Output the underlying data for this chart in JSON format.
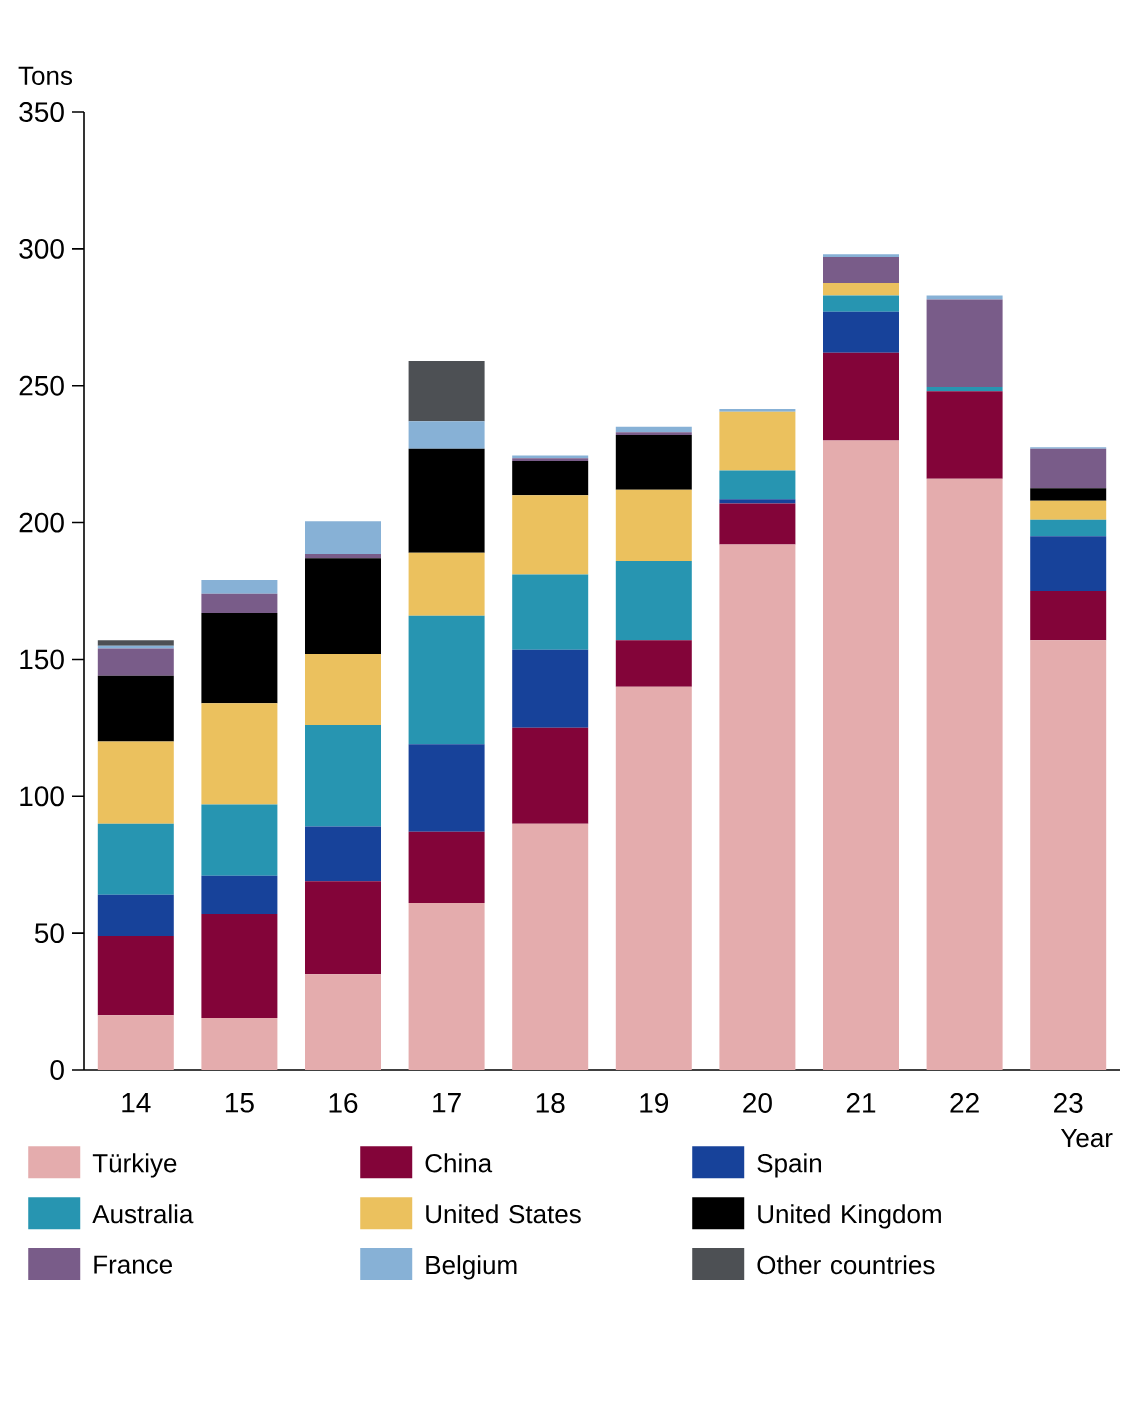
{
  "chart_data": {
    "type": "bar",
    "stacked": true,
    "xlabel": "Year",
    "ylabel": "Tons",
    "categories": [
      "14",
      "15",
      "16",
      "17",
      "18",
      "19",
      "20",
      "21",
      "22",
      "23"
    ],
    "ylim": [
      0,
      350
    ],
    "yticks": [
      0,
      50,
      100,
      150,
      200,
      250,
      300,
      350
    ],
    "grid": false,
    "legend": "bottom",
    "series": [
      {
        "name": "Türkiye",
        "color": "#e4acad",
        "values": [
          20,
          19,
          35,
          61,
          90,
          140,
          192,
          230,
          216,
          157
        ]
      },
      {
        "name": "China",
        "color": "#830439",
        "values": [
          29,
          38,
          34,
          26,
          35,
          17,
          15,
          32,
          32,
          18
        ]
      },
      {
        "name": "Spain",
        "color": "#17429a",
        "values": [
          15,
          14,
          20,
          32,
          28.5,
          0,
          1.5,
          15,
          0,
          20
        ]
      },
      {
        "name": "Australia",
        "color": "#2795b1",
        "values": [
          26,
          26,
          37,
          47,
          27.5,
          29,
          10.5,
          6,
          1.5,
          6
        ]
      },
      {
        "name": "United States",
        "color": "#ebc15e",
        "values": [
          30,
          37,
          26,
          23,
          29,
          26,
          21.5,
          4.5,
          0,
          7
        ]
      },
      {
        "name": "United Kingdom",
        "color": "#000000",
        "values": [
          24,
          33,
          35,
          38,
          12.5,
          20,
          0,
          0,
          0,
          4.5
        ]
      },
      {
        "name": "France",
        "color": "#795c89",
        "values": [
          10,
          7,
          1.5,
          0,
          1,
          1,
          0,
          9.5,
          32,
          14.5
        ]
      },
      {
        "name": "Belgium",
        "color": "#87b1d6",
        "values": [
          1,
          5,
          12,
          10,
          1,
          2,
          1,
          1,
          1.5,
          0.5
        ]
      },
      {
        "name": "Other countries",
        "color": "#4d5054",
        "values": [
          2,
          0,
          0,
          22,
          0,
          0,
          0,
          0,
          0,
          0
        ]
      }
    ]
  }
}
